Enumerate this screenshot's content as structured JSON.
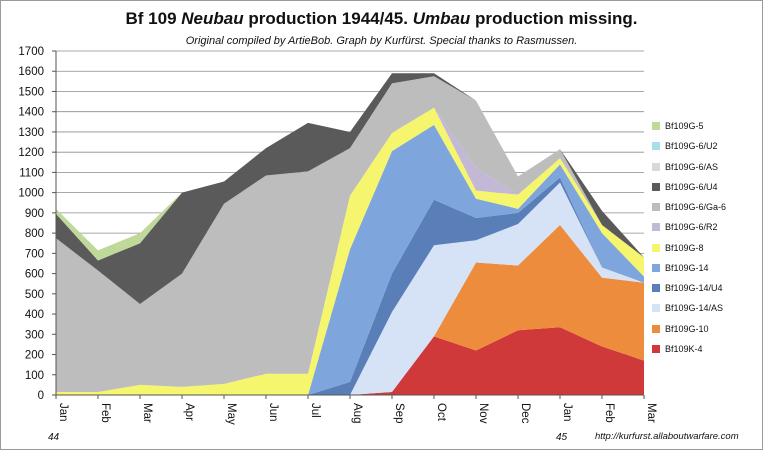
{
  "chart_data": {
    "type": "area",
    "stacked": true,
    "title": {
      "prefix": "Bf 109 ",
      "italic1": "Neubau",
      "middle": " production 1944/45. ",
      "italic2": "Umbau",
      "suffix": " production missing."
    },
    "subtitle": "Original compiled by ArtieBob. Graph by Kurfürst. Special thanks to Rasmussen.",
    "source_url": "http://kurfurst.allaboutwarfare.com",
    "categories": [
      "Jan",
      "Feb",
      "Mar",
      "Apr",
      "May",
      "Jun",
      "Jul",
      "Aug",
      "Sep",
      "Oct",
      "Nov",
      "Dec",
      "Jan",
      "Feb",
      "Mar"
    ],
    "year_labels": [
      {
        "text": "44",
        "category_index": 0
      },
      {
        "text": "45",
        "category_index": 12
      }
    ],
    "y_ticks": [
      0,
      100,
      200,
      300,
      400,
      500,
      600,
      700,
      800,
      900,
      1000,
      1100,
      1200,
      1300,
      1400,
      1500,
      1600,
      1700
    ],
    "ylim": [
      0,
      1700
    ],
    "grid": true,
    "legend_position": "right",
    "stack_order": [
      "Bf109K-4",
      "Bf109G-10",
      "Bf109G-14/AS",
      "Bf109G-14/U4",
      "Bf109G-14",
      "Bf109G-8",
      "Bf109G-6/R2",
      "Bf109G-6/Ga-6",
      "Bf109G-6/U4",
      "Bf109G-6/AS",
      "Bf109G-6/U2",
      "Bf109G-5"
    ],
    "legend_order": [
      "Bf109G-5",
      "Bf109G-6/U2",
      "Bf109G-6/AS",
      "Bf109G-6/U4",
      "Bf109G-6/Ga-6",
      "Bf109G-6/R2",
      "Bf109G-8",
      "Bf109G-14",
      "Bf109G-14/U4",
      "Bf109G-14/AS",
      "Bf109G-10",
      "Bf109K-4"
    ],
    "series": [
      {
        "name": "Bf109K-4",
        "color": "#d0393a",
        "values": [
          0,
          0,
          0,
          0,
          0,
          0,
          0,
          0,
          15,
          290,
          220,
          320,
          335,
          240,
          170
        ]
      },
      {
        "name": "Bf109G-10",
        "color": "#ee8c3e",
        "values": [
          0,
          0,
          0,
          0,
          0,
          0,
          0,
          0,
          0,
          0,
          435,
          320,
          505,
          340,
          385
        ]
      },
      {
        "name": "Bf109G-14/AS",
        "color": "#d6e2f5",
        "values": [
          0,
          0,
          0,
          0,
          0,
          0,
          0,
          0,
          395,
          450,
          110,
          205,
          210,
          50,
          0
        ]
      },
      {
        "name": "Bf109G-14/U4",
        "color": "#5a7fb8",
        "values": [
          0,
          0,
          0,
          0,
          0,
          0,
          0,
          65,
          190,
          225,
          110,
          55,
          25,
          0,
          0
        ]
      },
      {
        "name": "Bf109G-14",
        "color": "#7ea6dc",
        "values": [
          0,
          0,
          0,
          0,
          0,
          0,
          0,
          655,
          605,
          370,
          95,
          20,
          65,
          170,
          30
        ]
      },
      {
        "name": "Bf109G-8",
        "color": "#f5f56e",
        "values": [
          15,
          15,
          50,
          40,
          55,
          105,
          105,
          265,
          90,
          85,
          40,
          70,
          30,
          40,
          95
        ]
      },
      {
        "name": "Bf109G-6/R2",
        "color": "#c3b8d6",
        "values": [
          0,
          0,
          0,
          0,
          0,
          0,
          0,
          0,
          0,
          0,
          115,
          0,
          0,
          0,
          0
        ]
      },
      {
        "name": "Bf109G-6/Ga-6",
        "color": "#bdbdbd",
        "values": [
          760,
          600,
          400,
          560,
          890,
          980,
          1000,
          235,
          245,
          155,
          330,
          90,
          45,
          0,
          0
        ]
      },
      {
        "name": "Bf109G-6/U4",
        "color": "#5a5a5a",
        "values": [
          120,
          50,
          300,
          400,
          110,
          135,
          240,
          80,
          50,
          15,
          0,
          0,
          0,
          70,
          0
        ]
      },
      {
        "name": "Bf109G-6/AS",
        "color": "#d9d9d9",
        "values": [
          0,
          0,
          0,
          0,
          0,
          0,
          0,
          0,
          0,
          0,
          0,
          0,
          0,
          0,
          0
        ]
      },
      {
        "name": "Bf109G-6/U2",
        "color": "#a8dce6",
        "values": [
          0,
          0,
          0,
          0,
          0,
          0,
          0,
          0,
          0,
          0,
          0,
          0,
          0,
          0,
          0
        ]
      },
      {
        "name": "Bf109G-5",
        "color": "#bfd99a",
        "values": [
          25,
          50,
          50,
          0,
          0,
          0,
          0,
          0,
          0,
          0,
          0,
          0,
          0,
          0,
          0
        ]
      }
    ]
  }
}
